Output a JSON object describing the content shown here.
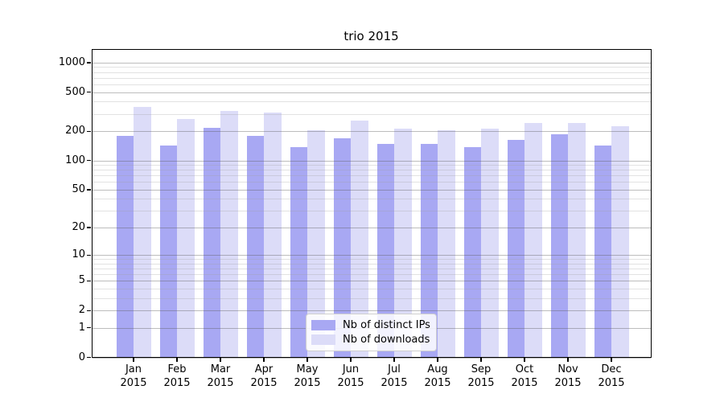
{
  "figure": {
    "title": "trio 2015",
    "background_color": "#ffffff",
    "axis_color": "#000000"
  },
  "chart_data": {
    "type": "bar",
    "title": "trio 2015",
    "categories": [
      "Jan",
      "Feb",
      "Mar",
      "Apr",
      "May",
      "Jun",
      "Jul",
      "Aug",
      "Sep",
      "Oct",
      "Nov",
      "Dec"
    ],
    "category_year": "2015",
    "series": [
      {
        "name": "Nb of distinct IPs",
        "color": "#a8a8f3",
        "values": [
          177,
          142,
          214,
          177,
          138,
          170,
          148,
          148,
          136,
          164,
          185,
          143
        ]
      },
      {
        "name": "Nb of downloads",
        "color": "#dcdcf8",
        "values": [
          351,
          265,
          320,
          310,
          204,
          256,
          211,
          205,
          212,
          243,
          240,
          224
        ]
      }
    ],
    "y_scale": "log(1+y)",
    "y_ticks": [
      0,
      1,
      2,
      5,
      10,
      20,
      50,
      100,
      200,
      500,
      1000
    ],
    "y_minor_gridlines": [
      3,
      4,
      6,
      7,
      8,
      9,
      30,
      40,
      60,
      70,
      80,
      90,
      300,
      400,
      600,
      700,
      800,
      900
    ],
    "ylim": [
      0,
      1373
    ],
    "grid": true,
    "grid_above_bars": true,
    "major_grid_color": "#b4b4b4",
    "minor_grid_color": "#e2e2e2",
    "legend": {
      "position": "lower center",
      "items": [
        "Nb of distinct IPs",
        "Nb of downloads"
      ]
    }
  }
}
